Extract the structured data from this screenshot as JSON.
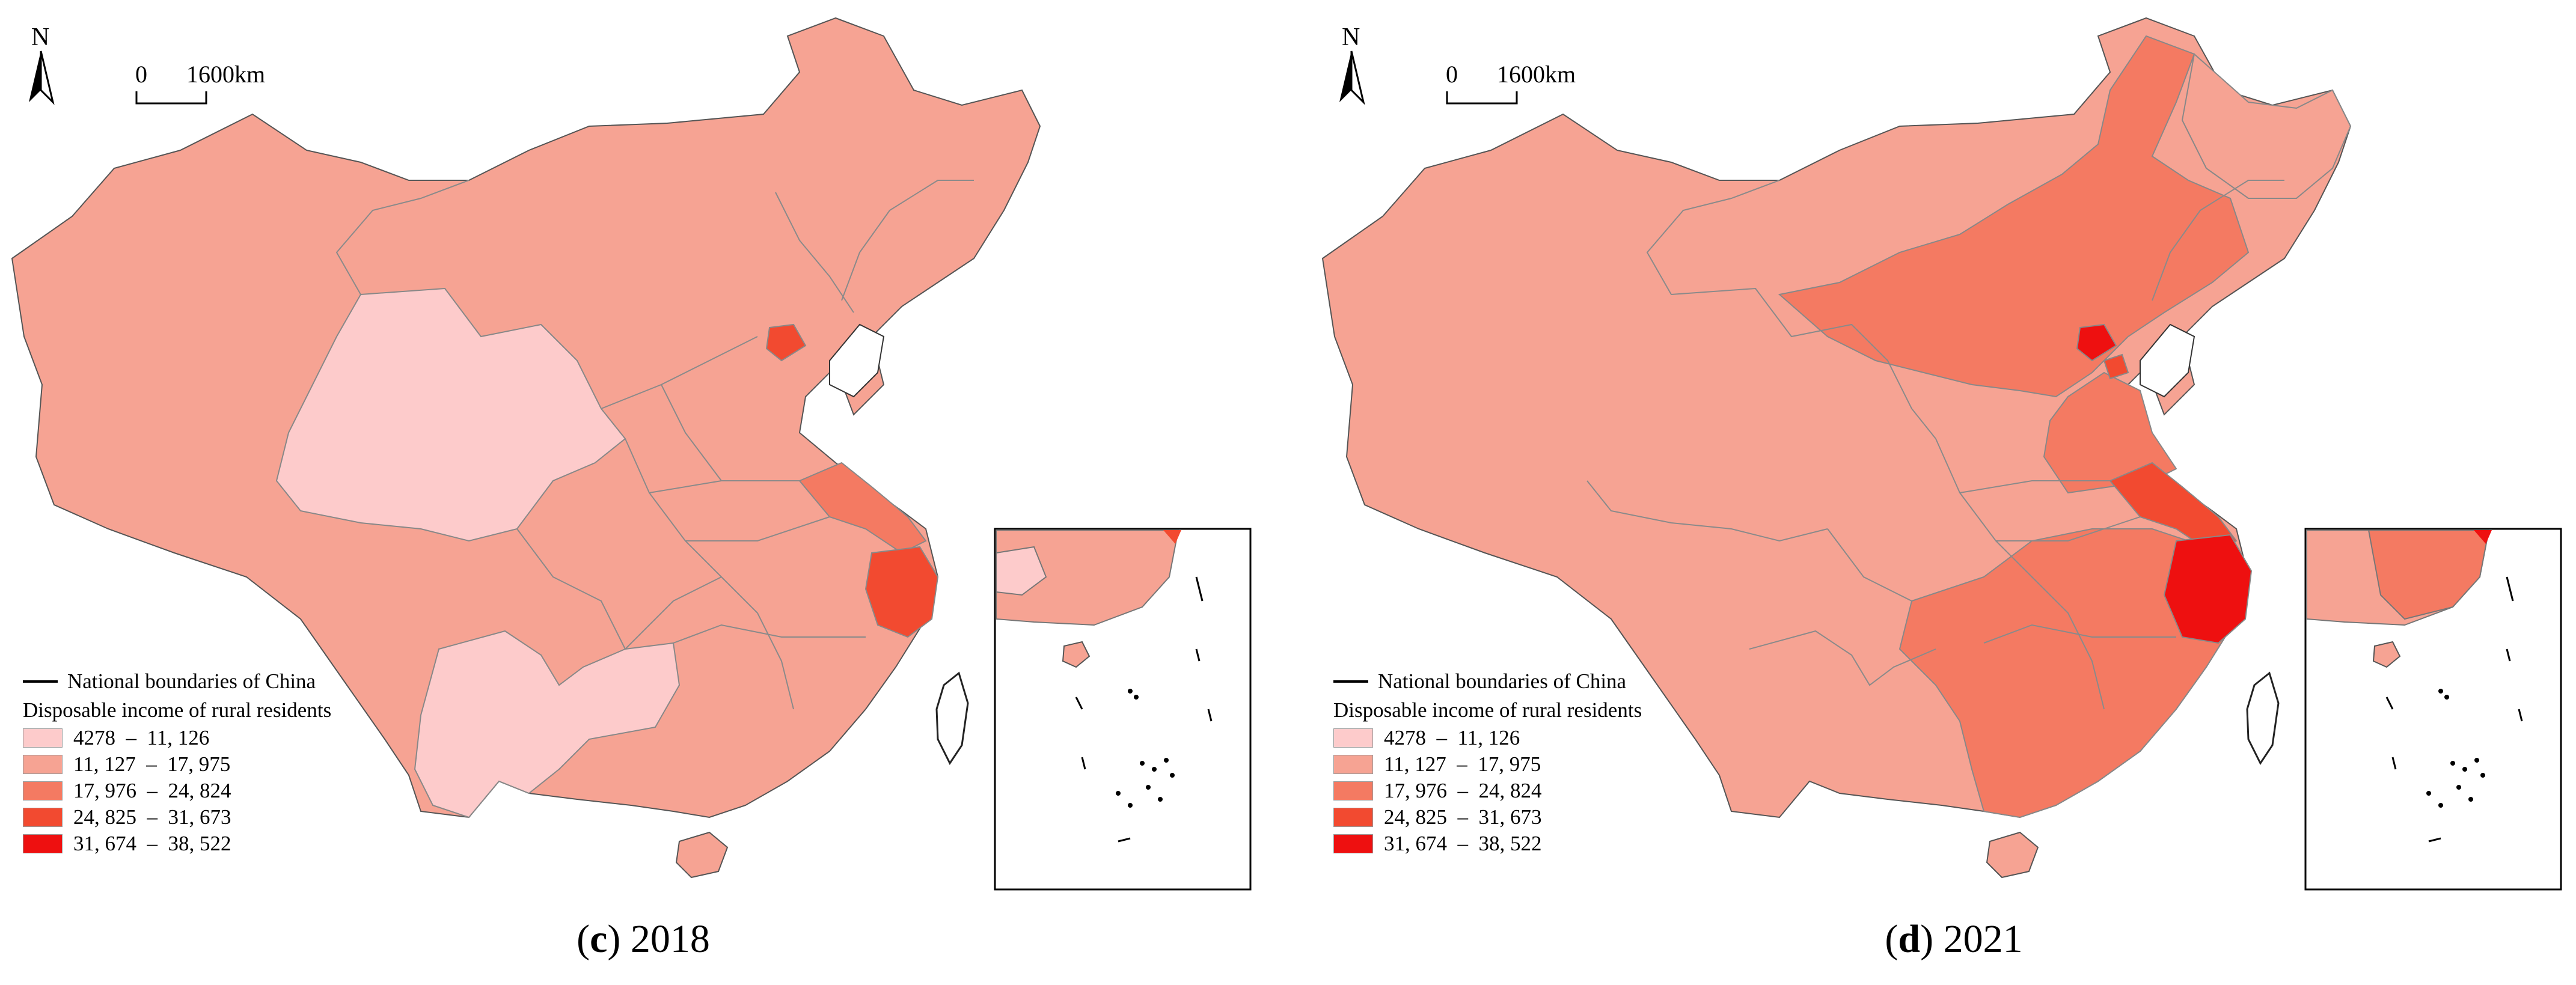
{
  "scale": {
    "zero": "0",
    "distance": "1600km"
  },
  "north_label": "N",
  "legend": {
    "boundary_label": "National boundaries of China",
    "title": "Disposable income of rural residents",
    "classes": [
      {
        "label": "4278  –  11, 126",
        "color": "#fdcbcb"
      },
      {
        "label": "11, 127  –  17, 975",
        "color": "#f6a393"
      },
      {
        "label": "17, 976  –  24, 824",
        "color": "#f47a62"
      },
      {
        "label": "24, 825  –  31, 673",
        "color": "#f24a30"
      },
      {
        "label": "31, 674  –  38, 522",
        "color": "#ee1010"
      }
    ]
  },
  "panels": [
    {
      "caption_letter": "c",
      "caption_year": "2018"
    },
    {
      "caption_letter": "d",
      "caption_year": "2021"
    }
  ],
  "region_classes": {
    "2018": {
      "Xinjiang": 2,
      "Tibet": 2,
      "Qinghai": 1,
      "Gansu": 1,
      "Inner Mongolia": 2,
      "Heilongjiang": 2,
      "Jilin": 2,
      "Liaoning": 2,
      "Beijing": 4,
      "Tianjin": 3,
      "Hebei": 2,
      "Shanxi": 2,
      "Shaanxi": 2,
      "Ningxia": 2,
      "Sichuan": 2,
      "Yunnan": 1,
      "Guizhou": 1,
      "Chongqing": 2,
      "Hubei": 2,
      "Hunan": 2,
      "Henan": 2,
      "Shandong": 2,
      "Jiangsu": 3,
      "Shanghai": 4,
      "Zhejiang": 4,
      "Anhui": 2,
      "Jiangxi": 2,
      "Fujian": 3,
      "Guangdong": 2,
      "Guangxi": 2,
      "Hainan": 2,
      "Taiwan": 0
    },
    "2021": {
      "Xinjiang": 2,
      "Tibet": 2,
      "Qinghai": 2,
      "Gansu": 2,
      "Inner Mongolia": 3,
      "Heilongjiang": 3,
      "Jilin": 2,
      "Liaoning": 3,
      "Beijing": 5,
      "Tianjin": 4,
      "Hebei": 3,
      "Shanxi": 2,
      "Shaanxi": 2,
      "Ningxia": 3,
      "Sichuan": 2,
      "Yunnan": 2,
      "Guizhou": 2,
      "Chongqing": 3,
      "Hubei": 3,
      "Hunan": 3,
      "Henan": 3,
      "Shandong": 3,
      "Jiangsu": 4,
      "Shanghai": 5,
      "Zhejiang": 5,
      "Anhui": 3,
      "Jiangxi": 3,
      "Fujian": 3,
      "Guangdong": 3,
      "Guangxi": 2,
      "Hainan": 2,
      "Taiwan": 0
    }
  }
}
